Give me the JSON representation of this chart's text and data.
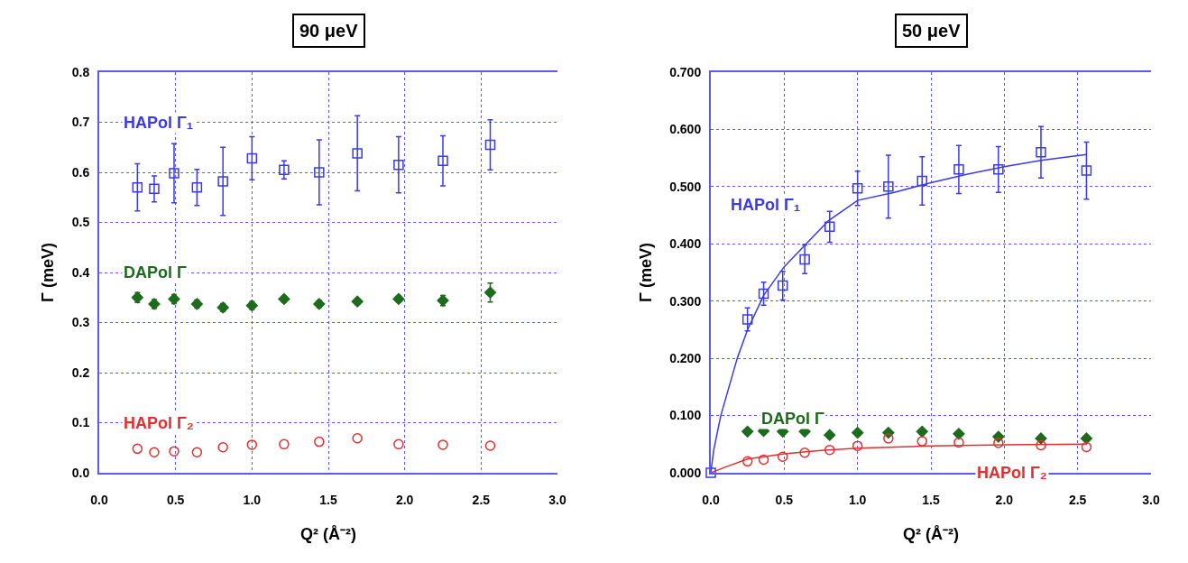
{
  "chart_data": [
    {
      "type": "scatter",
      "title": "90 μeV",
      "xlabel": "Q² (Å⁻²)",
      "ylabel": "Γ (meV)",
      "xlim": [
        0,
        3
      ],
      "xticks": [
        {
          "value": 0,
          "label": "0.0"
        },
        0.5,
        {
          "value": 1,
          "label": "1.0"
        },
        1.5,
        {
          "value": 2,
          "label": "2.0"
        },
        2.5,
        {
          "value": 3,
          "label": "3.0"
        }
      ],
      "ylim": [
        0,
        0.8
      ],
      "yticks": [
        {
          "value": 0,
          "label": "0.0"
        },
        0.1,
        0.2,
        0.3,
        0.4,
        0.5,
        0.6,
        0.7,
        0.8
      ],
      "grid": true,
      "line_style": "dotted",
      "x": [
        0.25,
        0.36,
        0.49,
        0.64,
        0.81,
        1.0,
        1.21,
        1.44,
        1.69,
        1.96,
        2.25,
        2.56
      ],
      "series": [
        {
          "name": "HAPol Γ₁",
          "color": "#3a3ae8",
          "marker": "square",
          "values": [
            0.57,
            0.567,
            0.598,
            0.57,
            0.582,
            0.628,
            0.605,
            0.6,
            0.638,
            0.615,
            0.623,
            0.655
          ],
          "errors": [
            0.047,
            0.026,
            0.059,
            0.036,
            0.068,
            0.043,
            0.018,
            0.065,
            0.075,
            0.056,
            0.05,
            0.05
          ]
        },
        {
          "name": "DAPol Γ",
          "color": "#1e6b1e",
          "marker": "diamond",
          "values": [
            0.35,
            0.337,
            0.347,
            0.337,
            0.33,
            0.334,
            0.347,
            0.337,
            0.342,
            0.347,
            0.344,
            0.36
          ],
          "errors": [
            0.01,
            0.009,
            0.009,
            0.008,
            0.008,
            0.008,
            0.006,
            0.007,
            0.006,
            0.006,
            0.01,
            0.019
          ]
        },
        {
          "name": "HAPol Γ₂",
          "color": "#e03030",
          "marker": "circle",
          "values": [
            0.048,
            0.041,
            0.043,
            0.041,
            0.051,
            0.056,
            0.057,
            0.062,
            0.069,
            0.057,
            0.056,
            0.054
          ]
        }
      ]
    },
    {
      "type": "scatter",
      "title": "50 μeV",
      "xlabel": "Q² (Å⁻²)",
      "ylabel": "Γ (meV)",
      "xlim": [
        0,
        3
      ],
      "xticks": [
        {
          "value": 0,
          "label": "0.0"
        },
        0.5,
        {
          "value": 1,
          "label": "1.0"
        },
        1.5,
        {
          "value": 2,
          "label": "2.0"
        },
        2.5,
        {
          "value": 3,
          "label": "3.0"
        }
      ],
      "ylim": [
        0,
        0.7
      ],
      "yticks": [
        {
          "value": 0,
          "label": "0.000"
        },
        {
          "value": 0.1,
          "label": "0.100"
        },
        {
          "value": 0.2,
          "label": "0.200"
        },
        {
          "value": 0.3,
          "label": "0.300"
        },
        {
          "value": 0.4,
          "label": "0.400"
        },
        {
          "value": 0.5,
          "label": "0.500"
        },
        {
          "value": 0.6,
          "label": "0.600"
        },
        {
          "value": 0.7,
          "label": "0.700"
        }
      ],
      "grid": true,
      "line_style": "dotted",
      "x": [
        0,
        0.25,
        0.36,
        0.49,
        0.64,
        0.81,
        1.0,
        1.21,
        1.44,
        1.69,
        1.96,
        2.25,
        2.56
      ],
      "series": [
        {
          "name": "HAPol Γ₁",
          "color": "#3a3ae8",
          "marker": "square",
          "values": [
            0,
            0.268,
            0.313,
            0.327,
            0.373,
            0.43,
            0.497,
            0.5,
            0.51,
            0.53,
            0.53,
            0.56,
            0.528
          ],
          "errors": [
            null,
            0.02,
            0.02,
            0.025,
            0.025,
            0.027,
            0.03,
            0.055,
            0.042,
            0.042,
            0.04,
            0.045,
            0.05
          ]
        },
        {
          "name": "DAPol Γ",
          "color": "#1e6b1e",
          "marker": "diamond",
          "values": [
            null,
            0.072,
            0.073,
            0.072,
            0.072,
            0.066,
            0.07,
            0.07,
            0.072,
            0.068,
            0.063,
            0.06,
            0.06
          ]
        },
        {
          "name": "HAPol Γ₂",
          "color": "#e03030",
          "marker": "circle",
          "values": [
            null,
            0.02,
            0.023,
            0.028,
            0.035,
            0.04,
            0.047,
            0.06,
            0.055,
            0.053,
            0.052,
            0.048,
            0.045
          ]
        },
        {
          "type": "line",
          "color": "#3a3ae8",
          "line_style": "solid",
          "marker": "none",
          "x": [
            0,
            0.02,
            0.068,
            0.18,
            0.25,
            0.36,
            0.5,
            0.65,
            0.8,
            1.0,
            1.25,
            1.5,
            1.75,
            2.0,
            2.25,
            2.56
          ],
          "values": [
            0,
            0.04,
            0.1,
            0.2,
            0.25,
            0.31,
            0.36,
            0.4,
            0.44,
            0.476,
            0.49,
            0.507,
            0.522,
            0.535,
            0.546,
            0.556
          ]
        },
        {
          "type": "line",
          "color": "#e03030",
          "line_style": "solid",
          "marker": "none",
          "x": [
            0,
            0.1,
            0.25,
            0.5,
            0.75,
            1.0,
            1.5,
            2.0,
            2.56
          ],
          "values": [
            0,
            0.01,
            0.024,
            0.033,
            0.039,
            0.043,
            0.047,
            0.049,
            0.05
          ]
        }
      ]
    }
  ]
}
